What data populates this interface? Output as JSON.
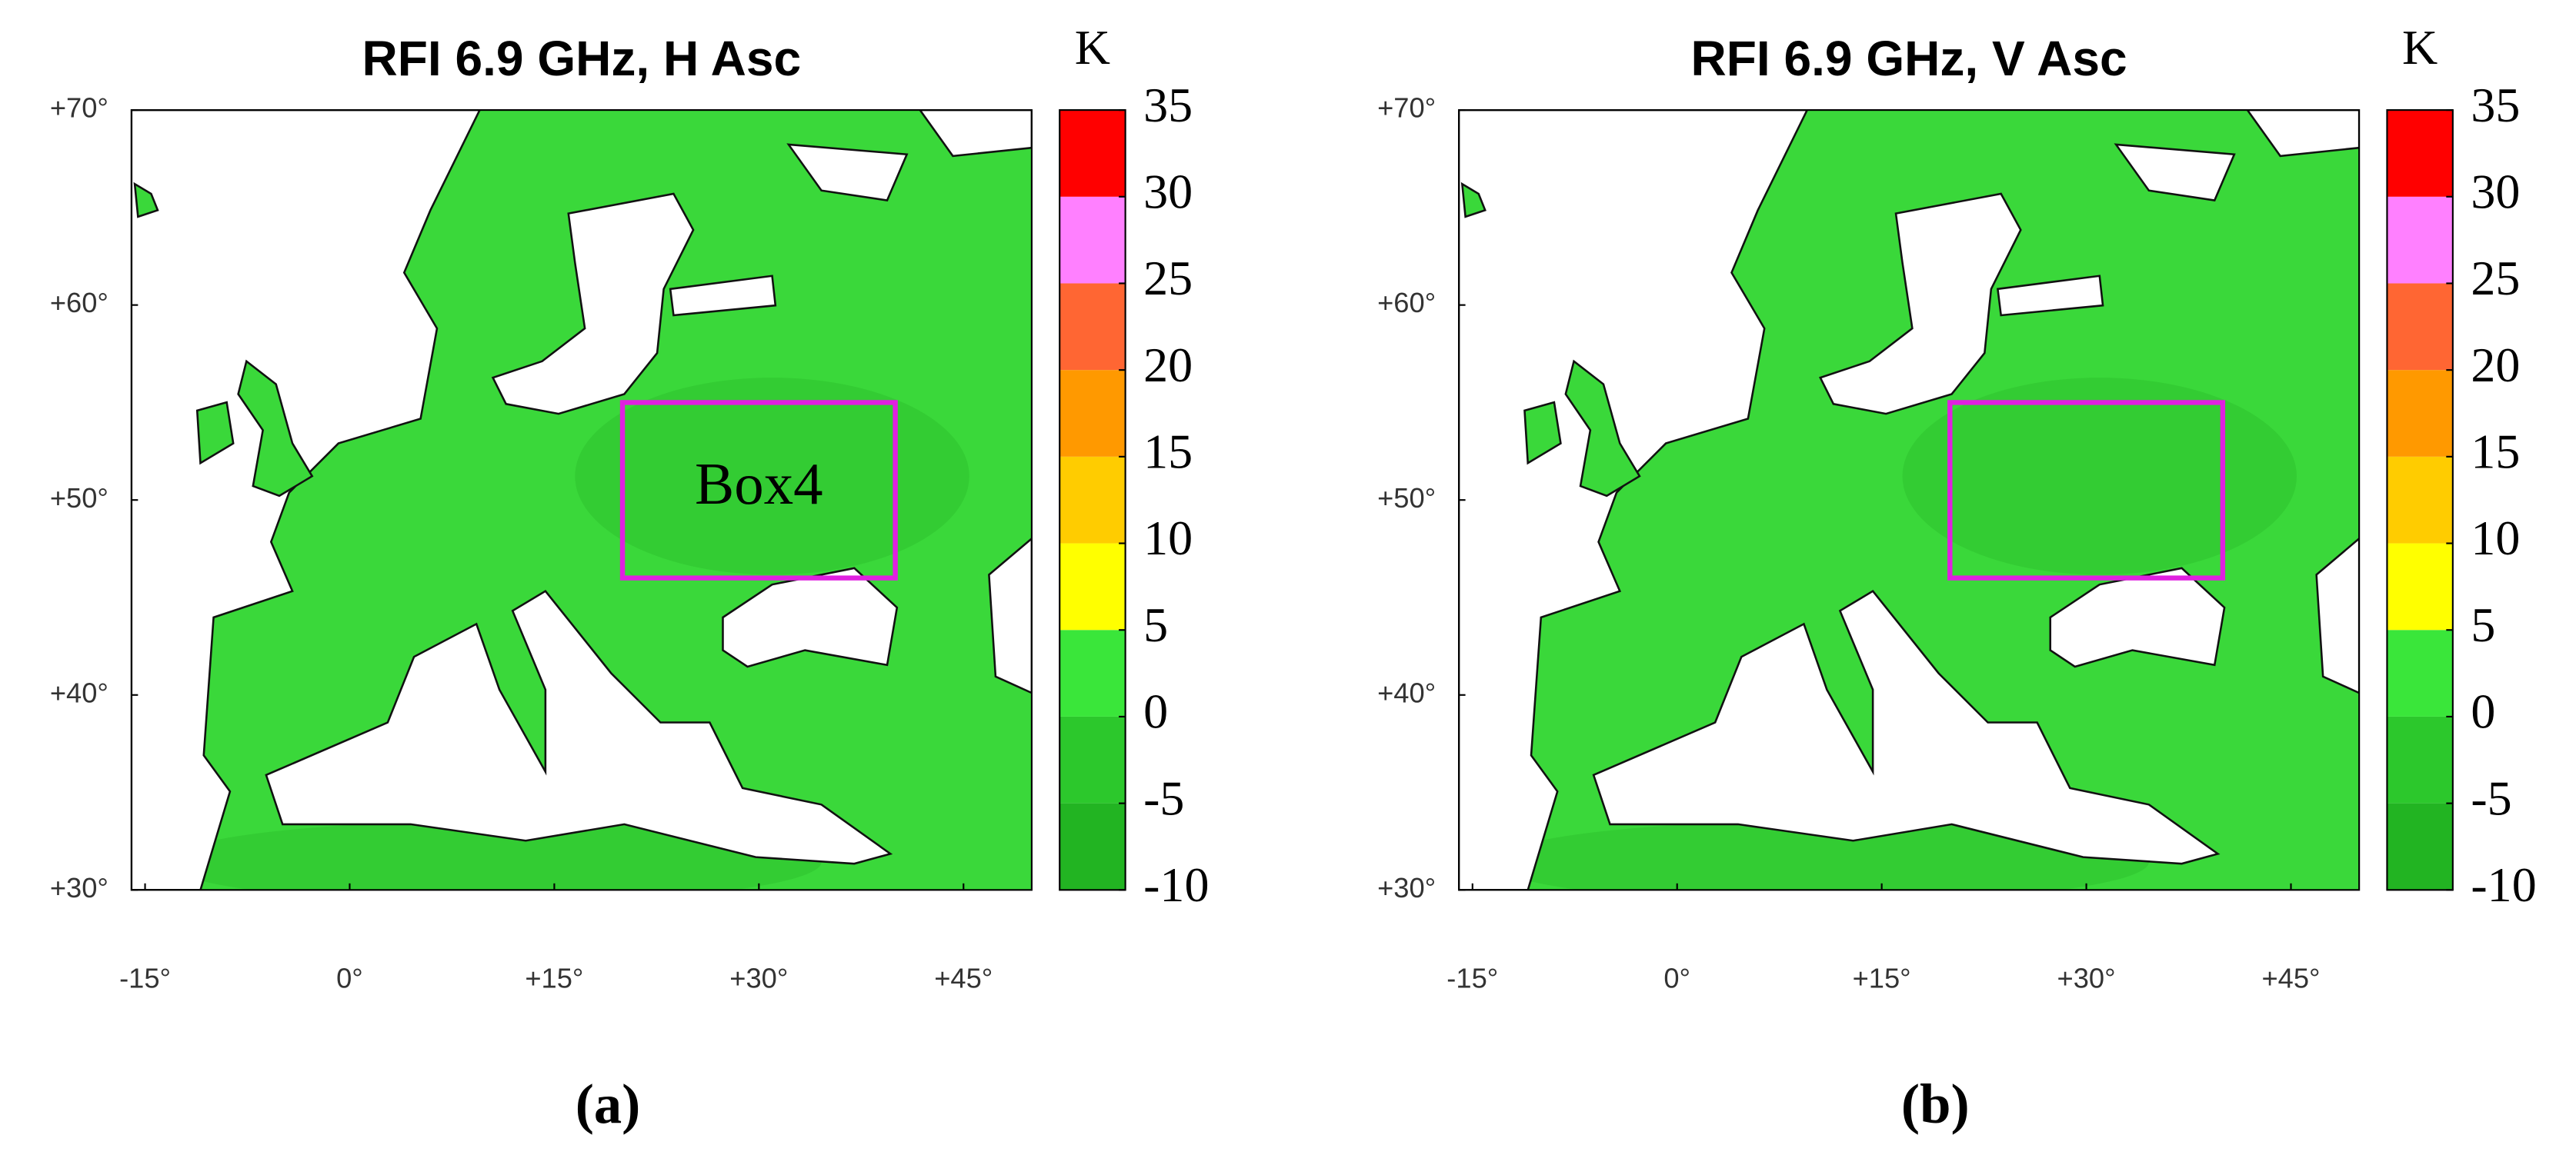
{
  "panels": [
    {
      "title": "RFI 6.9 GHz, H Asc",
      "caption": "(a)",
      "lonlim": [
        -16,
        50
      ],
      "latlim": [
        30,
        70
      ],
      "lon_ticks": [
        {
          "value": -15,
          "label": "-15°"
        },
        {
          "value": 0,
          "label": "0°"
        },
        {
          "value": 15,
          "label": "+15°"
        },
        {
          "value": 30,
          "label": "+30°"
        },
        {
          "value": 45,
          "label": "+45°"
        }
      ],
      "lat_ticks": [
        {
          "value": 30,
          "label": "+30°"
        },
        {
          "value": 40,
          "label": "+40°"
        },
        {
          "value": 50,
          "label": "+50°"
        },
        {
          "value": 60,
          "label": "+60°"
        },
        {
          "value": 70,
          "label": "+70°"
        }
      ],
      "colorbar": {
        "unit": "K",
        "ticks": [
          -10,
          -5,
          0,
          5,
          10,
          15,
          20,
          25,
          30,
          35
        ],
        "colors": [
          "#22b422",
          "#2cc82c",
          "#3ae63a",
          "#ffff00",
          "#ffcc00",
          "#ff9900",
          "#ff6633",
          "#ff80ff",
          "#ff0000"
        ]
      },
      "box": {
        "label": "Box4",
        "lon": [
          20,
          40
        ],
        "lat": [
          46,
          55
        ],
        "color": "#e020e0"
      }
    },
    {
      "title": "RFI 6.9 GHz, V Asc",
      "caption": "(b)",
      "lonlim": [
        -16,
        50
      ],
      "latlim": [
        30,
        70
      ],
      "lon_ticks": [
        {
          "value": -15,
          "label": "-15°"
        },
        {
          "value": 0,
          "label": "0°"
        },
        {
          "value": 15,
          "label": "+15°"
        },
        {
          "value": 30,
          "label": "+30°"
        },
        {
          "value": 45,
          "label": "+45°"
        }
      ],
      "lat_ticks": [
        {
          "value": 30,
          "label": "+30°"
        },
        {
          "value": 40,
          "label": "+40°"
        },
        {
          "value": 50,
          "label": "+50°"
        },
        {
          "value": 60,
          "label": "+60°"
        },
        {
          "value": 70,
          "label": "+70°"
        }
      ],
      "colorbar": {
        "unit": "K",
        "ticks": [
          -10,
          -5,
          0,
          5,
          10,
          15,
          20,
          25,
          30,
          35
        ],
        "colors": [
          "#22b422",
          "#2cc82c",
          "#3ae63a",
          "#ffff00",
          "#ffcc00",
          "#ff9900",
          "#ff6633",
          "#ff80ff",
          "#ff0000"
        ]
      },
      "box": {
        "lon": [
          20,
          40
        ],
        "lat": [
          46,
          55
        ],
        "color": "#e020e0"
      }
    }
  ]
}
